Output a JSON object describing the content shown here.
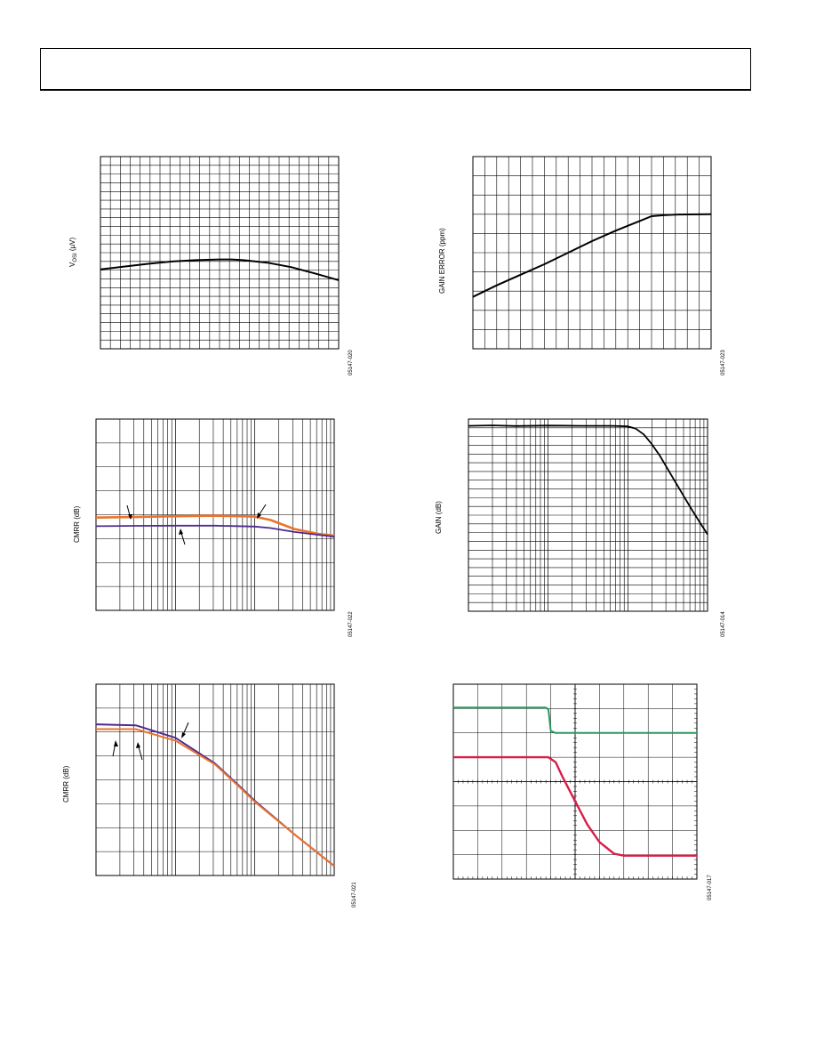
{
  "chart_data": [
    {
      "id": "vosi",
      "type": "line",
      "ylabel_main": "V",
      "ylabel_sub": "OSI",
      "ylabel_unit": " (µV)",
      "figure_id": "05147-020",
      "grid": true,
      "x": [
        0,
        0.1,
        0.2,
        0.3,
        0.4,
        0.5,
        0.55,
        0.6,
        0.7,
        0.8,
        0.9,
        1.0
      ],
      "series": [
        {
          "color": "#000000",
          "values": [
            0.413,
            0.428,
            0.442,
            0.454,
            0.461,
            0.465,
            0.465,
            0.461,
            0.448,
            0.425,
            0.392,
            0.357
          ]
        }
      ]
    },
    {
      "id": "gain-error",
      "type": "line",
      "ylabel": "GAIN ERROR (ppm)",
      "figure_id": "05147-023",
      "grid": true,
      "x": [
        0,
        0.1,
        0.2,
        0.3,
        0.4,
        0.5,
        0.6,
        0.7,
        0.75,
        0.8,
        0.85,
        1.0
      ],
      "series": [
        {
          "color": "#000000",
          "values": [
            0.27,
            0.33,
            0.385,
            0.44,
            0.5,
            0.56,
            0.615,
            0.665,
            0.69,
            0.695,
            0.698,
            0.7
          ]
        }
      ]
    },
    {
      "id": "cmrr-1",
      "type": "line",
      "ylabel": "CMRR (dB)",
      "figure_id": "05147-022",
      "grid": true,
      "log_x_decades": 3,
      "x": [
        0,
        0.5,
        1.0,
        1.5,
        2.0,
        2.2,
        2.5,
        2.8,
        3.0
      ],
      "series": [
        {
          "color": "#e8742e",
          "values": [
            0.485,
            0.488,
            0.492,
            0.495,
            0.49,
            0.472,
            0.425,
            0.4,
            0.39
          ]
        },
        {
          "color": "#4e2a8e",
          "values": [
            0.44,
            0.442,
            0.443,
            0.443,
            0.438,
            0.43,
            0.41,
            0.395,
            0.385
          ]
        }
      ]
    },
    {
      "id": "gain",
      "type": "line",
      "ylabel": "GAIN (dB)",
      "figure_id": "05147-014",
      "grid": true,
      "log_x_decades": 3,
      "x": [
        0,
        0.3,
        0.6,
        1.0,
        1.4,
        1.8,
        2.0,
        2.1,
        2.2,
        2.3,
        2.4,
        2.5,
        2.6,
        2.7,
        2.8,
        2.9,
        3.0
      ],
      "series": [
        {
          "color": "#000000",
          "values": [
            0.965,
            0.967,
            0.964,
            0.966,
            0.965,
            0.965,
            0.962,
            0.95,
            0.92,
            0.87,
            0.81,
            0.74,
            0.67,
            0.6,
            0.53,
            0.465,
            0.4
          ]
        }
      ]
    },
    {
      "id": "cmrr-2",
      "type": "line",
      "ylabel": "CMRR (dB)",
      "figure_id": "05147-021",
      "grid": true,
      "log_x_decades": 3,
      "x": [
        0,
        0.5,
        1.0,
        1.5,
        1.8,
        2.0,
        2.5,
        3.0
      ],
      "series": [
        {
          "color": "#4e2a8e",
          "values": [
            0.79,
            0.785,
            0.72,
            0.585,
            0.47,
            0.39,
            0.215,
            0.05
          ]
        },
        {
          "color": "#e8742e",
          "values": [
            0.765,
            0.765,
            0.705,
            0.58,
            0.465,
            0.385,
            0.215,
            0.05
          ]
        }
      ]
    },
    {
      "id": "transient",
      "type": "line",
      "figure_id": "05147-017",
      "grid": true,
      "x": [
        0,
        0.38,
        0.39,
        0.395,
        0.4,
        0.42,
        0.45,
        1.0
      ],
      "series": [
        {
          "color": "#2a9a5e",
          "values": [
            0.88,
            0.88,
            0.87,
            0.82,
            0.76,
            0.75,
            0.75,
            0.75
          ]
        }
      ],
      "series_b": {
        "color": "#d81e48",
        "x": [
          0,
          0.39,
          0.42,
          0.45,
          0.5,
          0.55,
          0.6,
          0.66,
          0.7,
          0.75,
          1.0
        ],
        "values": [
          0.625,
          0.625,
          0.6,
          0.52,
          0.4,
          0.28,
          0.19,
          0.13,
          0.12,
          0.12,
          0.12
        ]
      }
    }
  ]
}
